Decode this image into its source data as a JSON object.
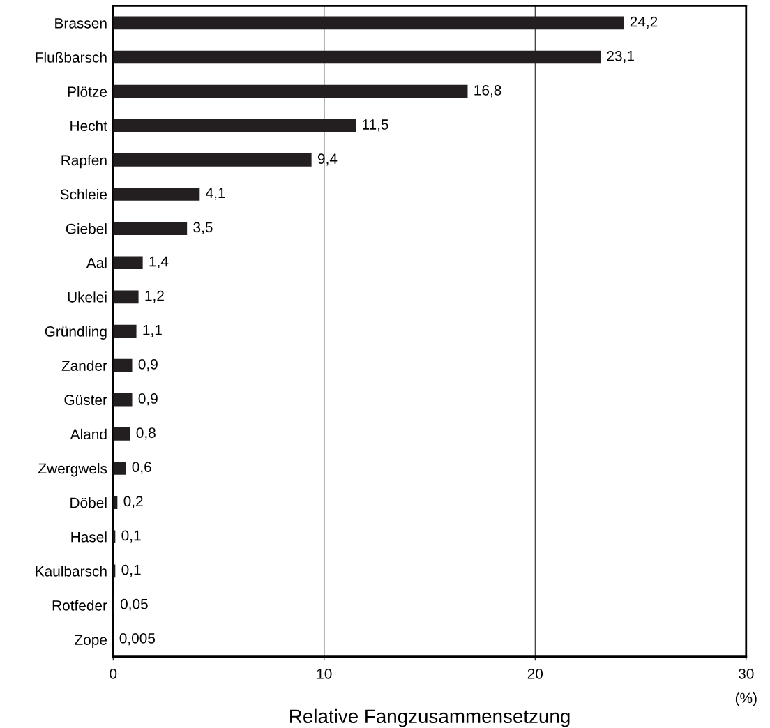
{
  "chart_data": {
    "type": "bar",
    "orientation": "horizontal",
    "xlabel": "Relative Fangzusammensetzung",
    "categories": [
      "Brassen",
      "Flußbarsch",
      "Plötze",
      "Hecht",
      "Rapfen",
      "Schleie",
      "Giebel",
      "Aal",
      "Ukelei",
      "Gründling",
      "Zander",
      "Güster",
      "Aland",
      "Zwergwels",
      "Döbel",
      "Hasel",
      "Kaulbarsch",
      "Rotfeder",
      "Zope"
    ],
    "values": [
      24.2,
      23.1,
      16.8,
      11.5,
      9.4,
      4.1,
      3.5,
      1.4,
      1.2,
      1.1,
      0.9,
      0.9,
      0.8,
      0.6,
      0.2,
      0.1,
      0.1,
      0.05,
      0.005
    ],
    "value_labels": [
      "24,2",
      "23,1",
      "16,8",
      "11,5",
      "9,4",
      "4,1",
      "3,5",
      "1,4",
      "1,2",
      "1,1",
      "0,9",
      "0,9",
      "0,8",
      "0,6",
      "0,2",
      "0,1",
      "0,1",
      "0,05",
      "0,005"
    ],
    "color": "#231f20",
    "xlim": [
      0,
      30
    ],
    "xticks": [
      0,
      10,
      20,
      30
    ],
    "grid": "x",
    "annotations": [
      "(%)"
    ]
  }
}
